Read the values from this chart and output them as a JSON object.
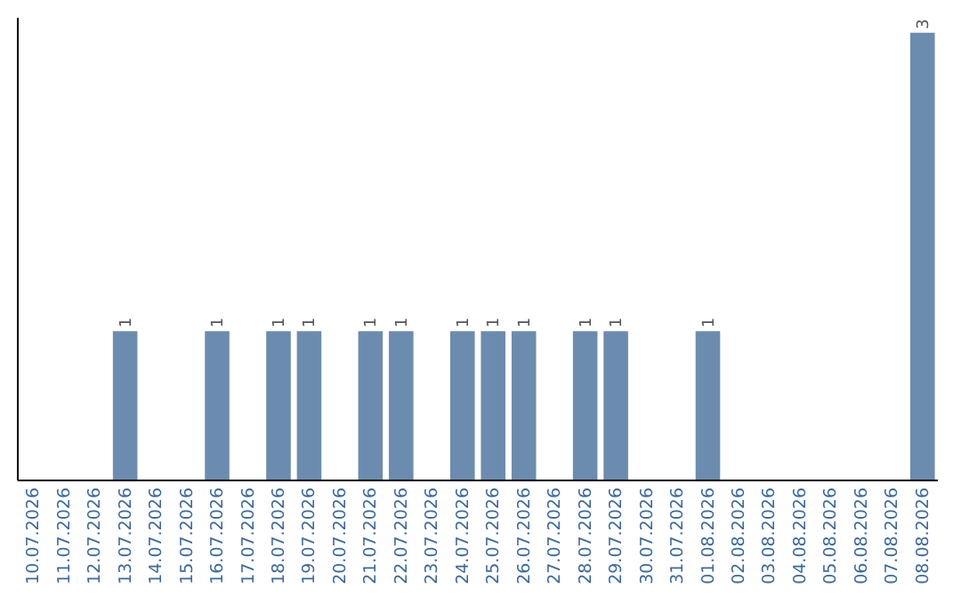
{
  "chart_data": {
    "type": "bar",
    "categories": [
      "10.07.2026",
      "11.07.2026",
      "12.07.2026",
      "13.07.2026",
      "14.07.2026",
      "15.07.2026",
      "16.07.2026",
      "17.07.2026",
      "18.07.2026",
      "19.07.2026",
      "20.07.2026",
      "21.07.2026",
      "22.07.2026",
      "23.07.2026",
      "24.07.2026",
      "25.07.2026",
      "26.07.2026",
      "27.07.2026",
      "28.07.2026",
      "29.07.2026",
      "30.07.2026",
      "31.07.2026",
      "01.08.2026",
      "02.08.2026",
      "03.08.2026",
      "04.08.2026",
      "05.08.2026",
      "06.08.2026",
      "07.08.2026",
      "08.08.2026"
    ],
    "values": [
      0,
      0,
      0,
      1,
      0,
      0,
      1,
      0,
      1,
      1,
      0,
      1,
      1,
      0,
      1,
      1,
      1,
      0,
      1,
      1,
      0,
      0,
      1,
      0,
      0,
      0,
      0,
      0,
      0,
      3
    ],
    "value_labels": [
      null,
      null,
      null,
      "1",
      null,
      null,
      "1",
      null,
      "1",
      "1",
      null,
      "1",
      "1",
      null,
      "1",
      "1",
      "1",
      null,
      "1",
      "1",
      null,
      null,
      "1",
      null,
      null,
      null,
      null,
      null,
      null,
      "3"
    ],
    "color": "#6b8cae",
    "ylim": [
      0,
      3.1
    ],
    "tick_labels": "x"
  }
}
